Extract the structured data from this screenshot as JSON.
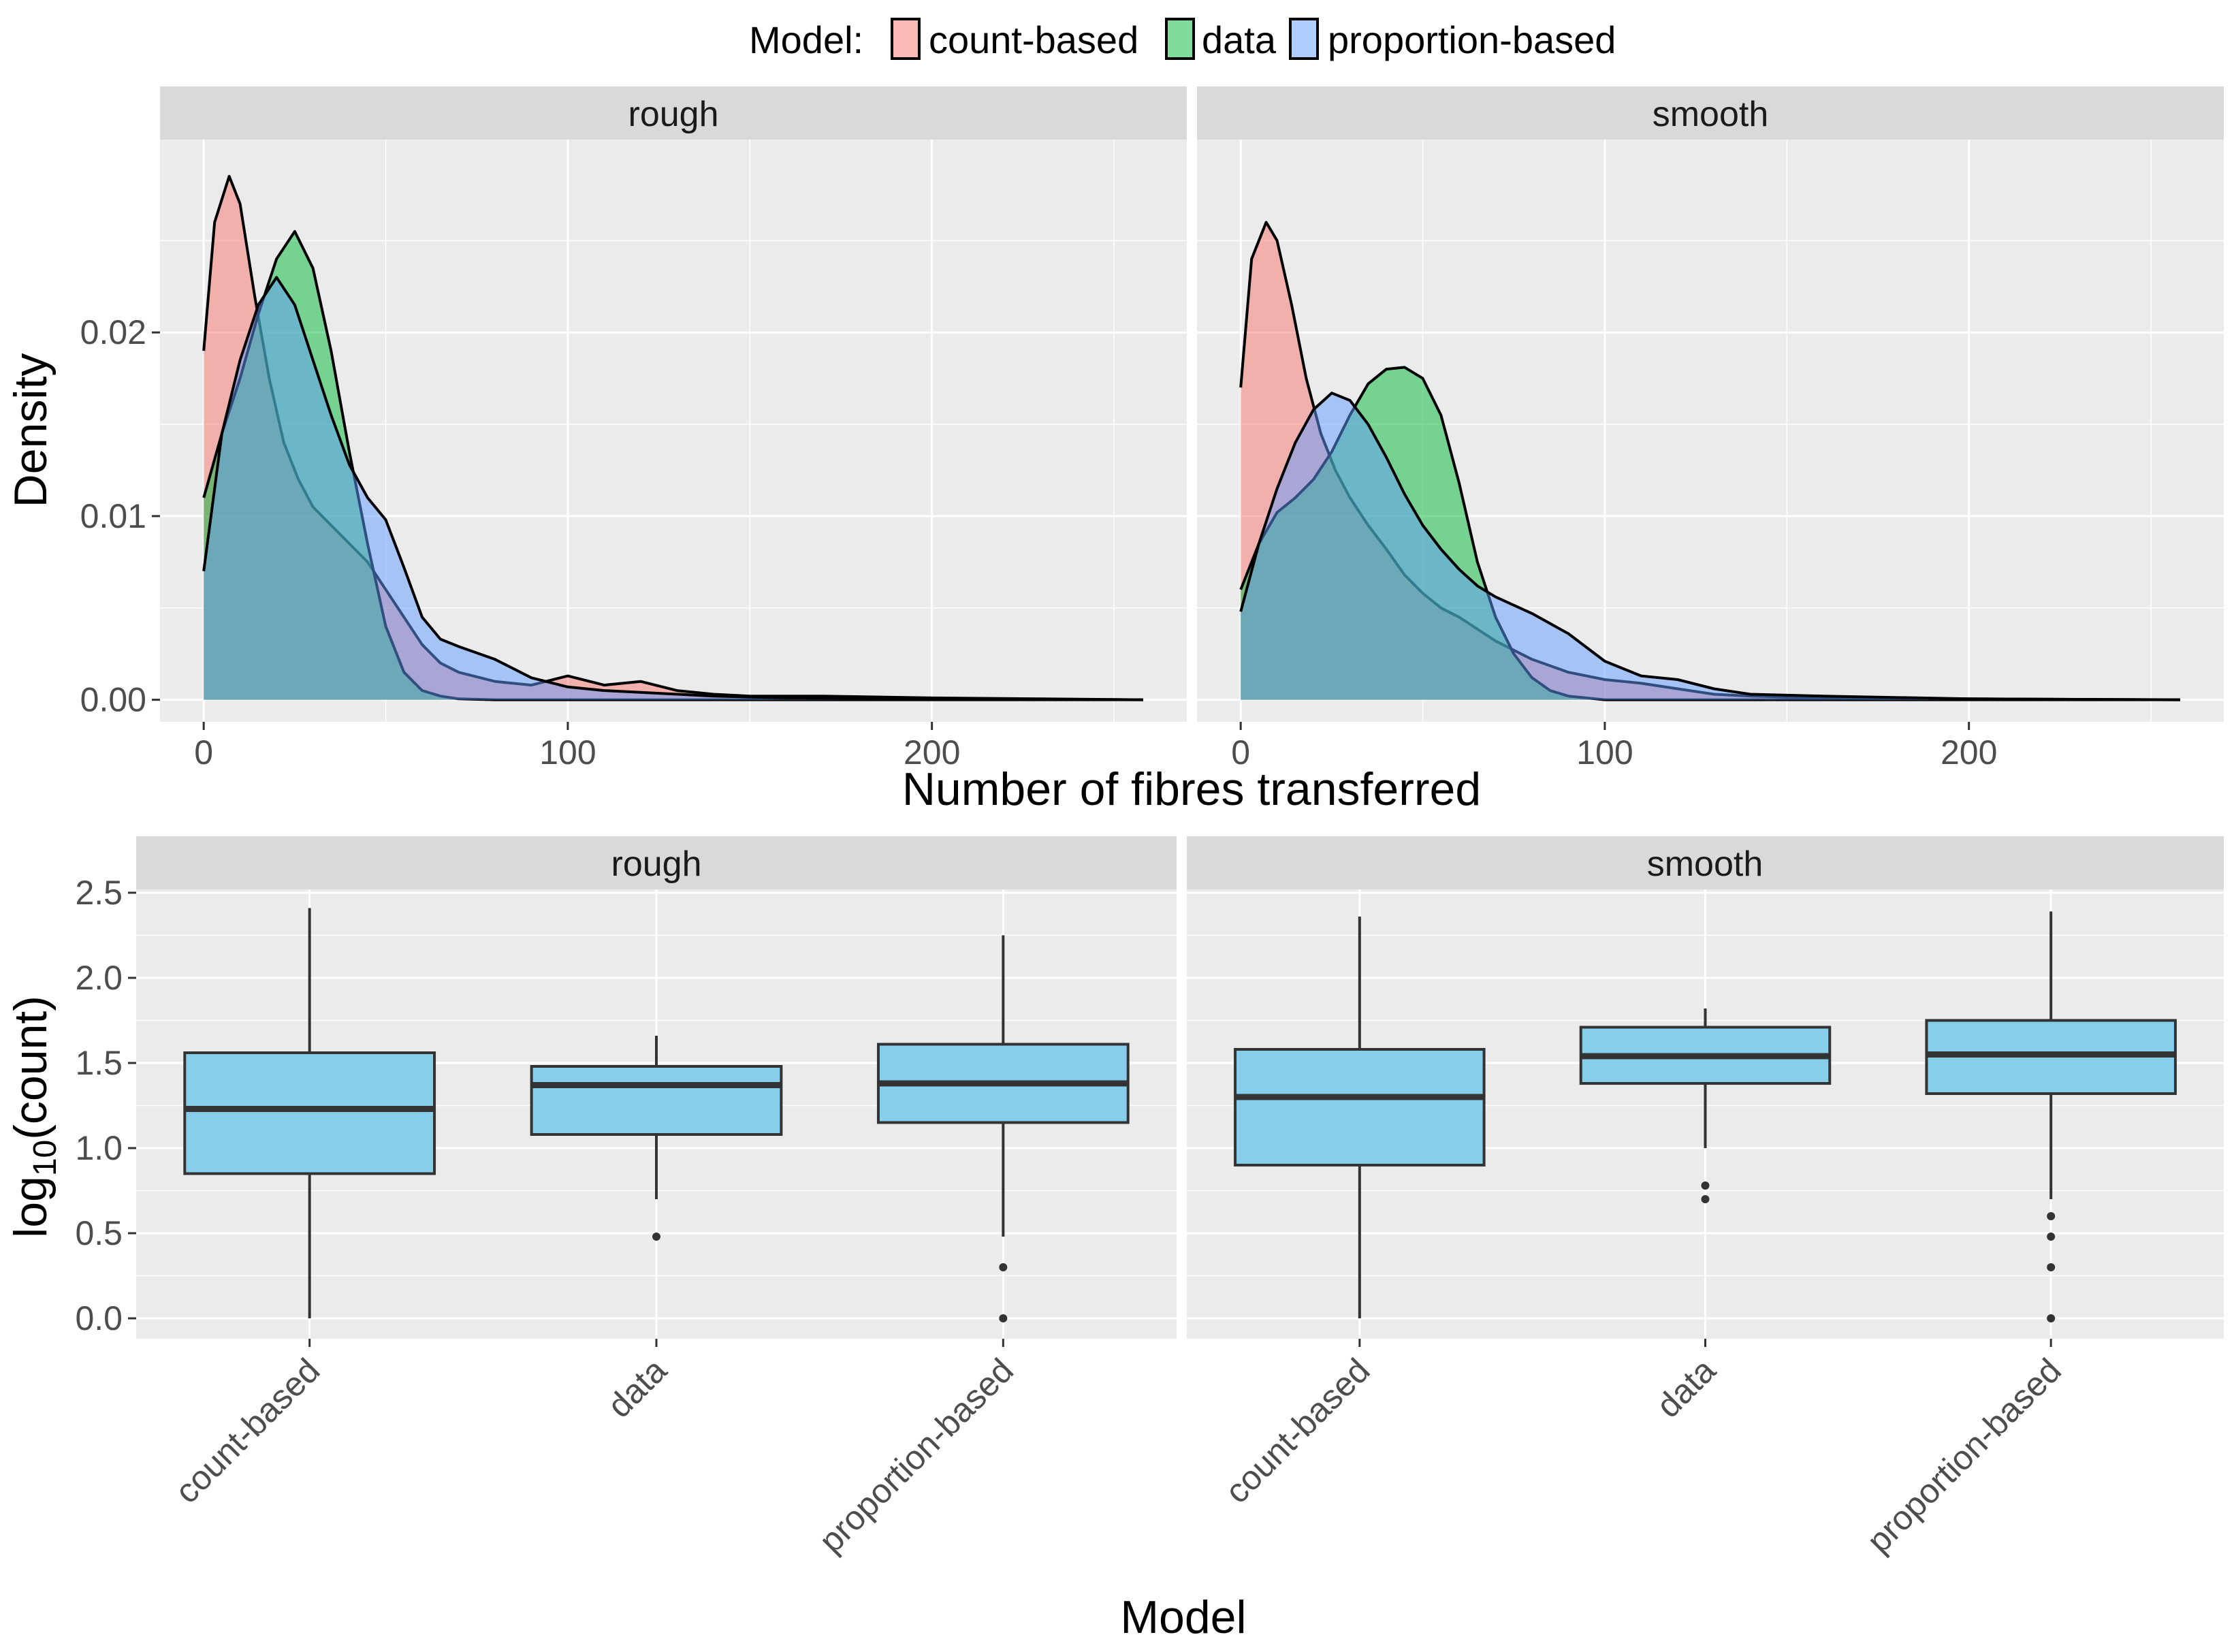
{
  "legend": {
    "title": "Model:",
    "items": [
      {
        "label": "count-based",
        "color": "#F8766D"
      },
      {
        "label": "data",
        "color": "#00BA38"
      },
      {
        "label": "proportion-based",
        "color": "#619CFF"
      }
    ]
  },
  "chart_data": [
    {
      "type": "area",
      "subtype": "density",
      "facets": [
        "rough",
        "smooth"
      ],
      "xlabel": "Number of fibres transferred",
      "ylabel": "Density",
      "xlim": [
        -12,
        270
      ],
      "ylim": [
        -0.0012,
        0.0305
      ],
      "xticks": [
        0,
        100,
        200
      ],
      "xtick_labels": [
        "0",
        "100",
        "200"
      ],
      "yticks": [
        0,
        0.01,
        0.02
      ],
      "ytick_labels": [
        "0.00",
        "0.01",
        "0.02"
      ],
      "grid": true,
      "fill_opacity": 0.5,
      "series": [
        {
          "facet": "rough",
          "name": "count-based",
          "color": "#F8766D",
          "x": [
            0,
            3,
            7,
            10,
            14,
            18,
            22,
            26,
            30,
            35,
            40,
            45,
            50,
            55,
            60,
            65,
            70,
            80,
            90,
            100,
            110,
            120,
            130,
            140,
            150,
            170,
            200,
            230,
            258
          ],
          "y": [
            0.019,
            0.026,
            0.0285,
            0.027,
            0.022,
            0.0175,
            0.014,
            0.012,
            0.0105,
            0.0095,
            0.0085,
            0.0075,
            0.006,
            0.0045,
            0.003,
            0.002,
            0.0015,
            0.001,
            0.0008,
            0.0013,
            0.0008,
            0.001,
            0.0005,
            0.0003,
            0.0002,
            0.0002,
            0.0001,
            5e-05,
            0.0
          ]
        },
        {
          "facet": "rough",
          "name": "data",
          "color": "#00BA38",
          "x": [
            0,
            5,
            10,
            15,
            20,
            25,
            30,
            35,
            40,
            45,
            50,
            55,
            60,
            65,
            70,
            80,
            100,
            150,
            200,
            258
          ],
          "y": [
            0.011,
            0.0145,
            0.0175,
            0.021,
            0.024,
            0.0255,
            0.0235,
            0.019,
            0.0135,
            0.0085,
            0.004,
            0.0015,
            0.0005,
            0.0002,
            5e-05,
            0.0,
            0.0,
            0.0,
            0.0,
            0.0
          ]
        },
        {
          "facet": "rough",
          "name": "proportion-based",
          "color": "#619CFF",
          "x": [
            0,
            5,
            10,
            15,
            20,
            25,
            30,
            35,
            40,
            45,
            50,
            55,
            60,
            65,
            70,
            80,
            90,
            100,
            110,
            120,
            140,
            160,
            200,
            258
          ],
          "y": [
            0.007,
            0.0145,
            0.0185,
            0.0215,
            0.023,
            0.0215,
            0.0185,
            0.0155,
            0.0128,
            0.011,
            0.0098,
            0.0072,
            0.0045,
            0.0033,
            0.0029,
            0.0022,
            0.0012,
            0.0007,
            0.0005,
            0.0004,
            0.0002,
            0.0001,
            5e-05,
            0.0
          ]
        },
        {
          "facet": "smooth",
          "name": "count-based",
          "color": "#F8766D",
          "x": [
            0,
            3,
            7,
            10,
            14,
            18,
            22,
            26,
            30,
            35,
            40,
            45,
            50,
            55,
            60,
            70,
            80,
            90,
            100,
            110,
            120,
            130,
            140,
            160,
            200,
            258
          ],
          "y": [
            0.017,
            0.024,
            0.026,
            0.025,
            0.0215,
            0.0175,
            0.0145,
            0.0125,
            0.011,
            0.0095,
            0.0082,
            0.0068,
            0.0058,
            0.005,
            0.0045,
            0.0032,
            0.0022,
            0.0015,
            0.0011,
            0.0009,
            0.0006,
            0.0003,
            0.0002,
            0.0001,
            5e-05,
            0.0
          ]
        },
        {
          "facet": "smooth",
          "name": "data",
          "color": "#00BA38",
          "x": [
            0,
            5,
            10,
            15,
            20,
            25,
            30,
            35,
            40,
            45,
            50,
            55,
            60,
            65,
            70,
            75,
            80,
            85,
            90,
            100,
            150,
            200,
            258
          ],
          "y": [
            0.006,
            0.0085,
            0.0102,
            0.011,
            0.012,
            0.0135,
            0.0155,
            0.0172,
            0.018,
            0.0181,
            0.0175,
            0.0155,
            0.0118,
            0.0075,
            0.0045,
            0.0025,
            0.0012,
            0.0005,
            0.0002,
            0.0,
            0.0,
            0.0,
            0.0
          ]
        },
        {
          "facet": "smooth",
          "name": "proportion-based",
          "color": "#619CFF",
          "x": [
            0,
            5,
            10,
            15,
            20,
            25,
            30,
            35,
            40,
            45,
            50,
            55,
            60,
            65,
            70,
            80,
            90,
            100,
            110,
            120,
            130,
            140,
            160,
            200,
            258
          ],
          "y": [
            0.0048,
            0.0085,
            0.0115,
            0.014,
            0.0158,
            0.0167,
            0.0163,
            0.015,
            0.0132,
            0.0112,
            0.0095,
            0.0082,
            0.0071,
            0.0062,
            0.0056,
            0.0047,
            0.0036,
            0.0021,
            0.0013,
            0.0011,
            0.0006,
            0.0003,
            0.0002,
            5e-05,
            0.0
          ]
        }
      ]
    },
    {
      "type": "boxplot",
      "facets": [
        "rough",
        "smooth"
      ],
      "categories": [
        "count-based",
        "data",
        "proportion-based"
      ],
      "xlabel": "Model",
      "ylabel": "log10(count)",
      "ylim": [
        -0.12,
        2.52
      ],
      "yticks": [
        0,
        0.5,
        1,
        1.5,
        2,
        2.5
      ],
      "ytick_labels": [
        "0.0",
        "0.5",
        "1.0",
        "1.5",
        "2.0",
        "2.5"
      ],
      "fill": "#87CEEB",
      "grid": true,
      "series": [
        {
          "facet": "rough",
          "boxes": [
            {
              "category": "count-based",
              "min": 0.0,
              "q1": 0.85,
              "median": 1.23,
              "q3": 1.56,
              "max": 2.41,
              "outliers": []
            },
            {
              "category": "data",
              "min": 0.7,
              "q1": 1.08,
              "median": 1.37,
              "q3": 1.48,
              "max": 1.66,
              "outliers": [
                0.48
              ]
            },
            {
              "category": "proportion-based",
              "min": 0.48,
              "q1": 1.15,
              "median": 1.38,
              "q3": 1.61,
              "max": 2.25,
              "outliers": [
                0.3,
                0.0
              ]
            }
          ]
        },
        {
          "facet": "smooth",
          "boxes": [
            {
              "category": "count-based",
              "min": 0.0,
              "q1": 0.9,
              "median": 1.3,
              "q3": 1.58,
              "max": 2.36,
              "outliers": []
            },
            {
              "category": "data",
              "min": 1.0,
              "q1": 1.38,
              "median": 1.54,
              "q3": 1.71,
              "max": 1.82,
              "outliers": [
                0.78,
                0.7
              ]
            },
            {
              "category": "proportion-based",
              "min": 0.7,
              "q1": 1.32,
              "median": 1.55,
              "q3": 1.75,
              "max": 2.39,
              "outliers": [
                0.6,
                0.48,
                0.3,
                0.0
              ]
            }
          ]
        }
      ]
    }
  ]
}
